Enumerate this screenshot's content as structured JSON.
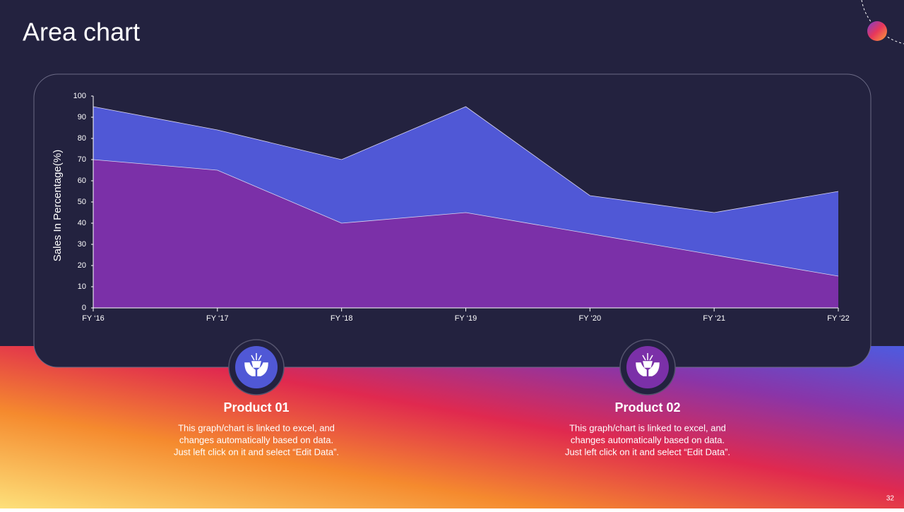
{
  "header": {
    "title": "Area chart"
  },
  "chart_data": {
    "type": "area",
    "y_label": "Sales In Percentage(%)",
    "categories": [
      "FY ‘16",
      "FY ‘17",
      "FY ‘18",
      "FY ‘19",
      "FY ‘20",
      "FY ‘21",
      "FY ‘22"
    ],
    "series": [
      {
        "color": "#5058d6",
        "values": [
          95,
          84,
          70,
          95,
          53,
          45,
          55
        ]
      },
      {
        "color": "#7b30a8",
        "values": [
          70,
          65,
          40,
          45,
          35,
          25,
          15
        ]
      }
    ],
    "ylim": [
      0,
      100
    ],
    "yticks": [
      0,
      10,
      20,
      30,
      40,
      50,
      60,
      70,
      80,
      90,
      100
    ],
    "stacked": false
  },
  "products": [
    {
      "title": "Product 01",
      "lines": [
        "This graph/chart is linked to excel, and",
        "changes automatically based on data.",
        "Just left click on it and select “Edit Data”."
      ],
      "color": "#5058d6"
    },
    {
      "title": "Product 02",
      "lines": [
        "This graph/chart is linked to excel, and",
        "changes automatically based on data.",
        "Just left click on it and select “Edit Data”."
      ],
      "color": "#7b30a8"
    }
  ],
  "page_number": "32"
}
